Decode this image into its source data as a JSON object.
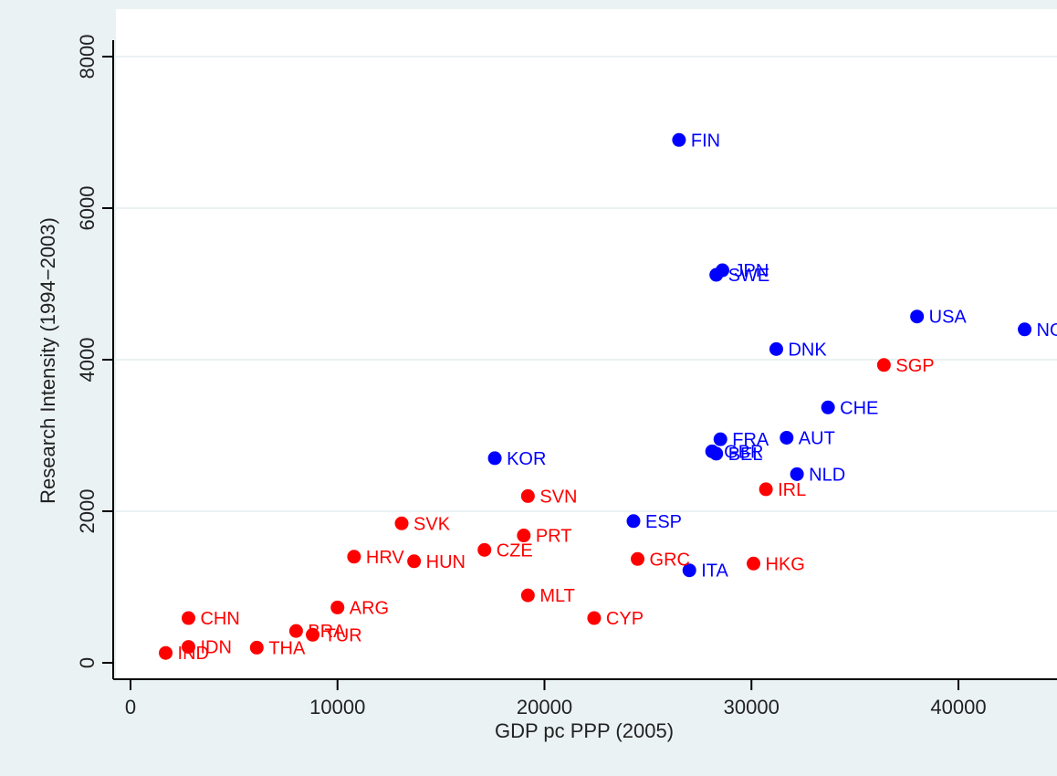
{
  "chart_data": {
    "type": "scatter",
    "xlabel": "GDP pc PPP (2005)",
    "ylabel": "Research Intensity (1994−2003)",
    "xlim": [
      -1000,
      44000
    ],
    "ylim": [
      -300,
      8400
    ],
    "x_ticks": [
      0,
      10000,
      20000,
      30000,
      40000
    ],
    "y_ticks": [
      0,
      2000,
      4000,
      6000,
      8000
    ],
    "grid": "horizontal",
    "legend": "none",
    "colors": {
      "blue": "#0000ff",
      "red": "#ff0000",
      "plot_bg": "#ffffff",
      "outer_bg": "#eaf2f3",
      "grid": "#eaf2f3"
    },
    "series": [
      {
        "color": "blue",
        "points": [
          {
            "label": "FIN",
            "x": 26500,
            "y": 6900
          },
          {
            "label": "JPN",
            "x": 28600,
            "y": 5180
          },
          {
            "label": "SWE",
            "x": 28300,
            "y": 5120
          },
          {
            "label": "USA",
            "x": 38000,
            "y": 4570
          },
          {
            "label": "NOR",
            "x": 43200,
            "y": 4400
          },
          {
            "label": "DNK",
            "x": 31200,
            "y": 4140
          },
          {
            "label": "CHE",
            "x": 33700,
            "y": 3370
          },
          {
            "label": "FRA",
            "x": 28500,
            "y": 2950
          },
          {
            "label": "AUT",
            "x": 31700,
            "y": 2970
          },
          {
            "label": "GBR",
            "x": 28100,
            "y": 2790
          },
          {
            "label": "BEL",
            "x": 28300,
            "y": 2760
          },
          {
            "label": "KOR",
            "x": 17600,
            "y": 2700
          },
          {
            "label": "NLD",
            "x": 32200,
            "y": 2490
          },
          {
            "label": "ESP",
            "x": 24300,
            "y": 1870
          },
          {
            "label": "ITA",
            "x": 27000,
            "y": 1220
          }
        ]
      },
      {
        "color": "red",
        "points": [
          {
            "label": "SGP",
            "x": 36400,
            "y": 3930
          },
          {
            "label": "IRL",
            "x": 30700,
            "y": 2290
          },
          {
            "label": "SVN",
            "x": 19200,
            "y": 2200
          },
          {
            "label": "SVK",
            "x": 13100,
            "y": 1840
          },
          {
            "label": "PRT",
            "x": 19000,
            "y": 1680
          },
          {
            "label": "CZE",
            "x": 17100,
            "y": 1490
          },
          {
            "label": "HRV",
            "x": 10800,
            "y": 1400
          },
          {
            "label": "HUN",
            "x": 13700,
            "y": 1340
          },
          {
            "label": "GRC",
            "x": 24500,
            "y": 1370
          },
          {
            "label": "HKG",
            "x": 30100,
            "y": 1310
          },
          {
            "label": "MLT",
            "x": 19200,
            "y": 890
          },
          {
            "label": "ARG",
            "x": 10000,
            "y": 730
          },
          {
            "label": "CHN",
            "x": 2800,
            "y": 590
          },
          {
            "label": "CYP",
            "x": 22400,
            "y": 590
          },
          {
            "label": "BRA",
            "x": 8000,
            "y": 420
          },
          {
            "label": "TUR",
            "x": 8800,
            "y": 370
          },
          {
            "label": "IDN",
            "x": 2800,
            "y": 210
          },
          {
            "label": "THA",
            "x": 6100,
            "y": 200
          },
          {
            "label": "IND",
            "x": 1700,
            "y": 130
          }
        ]
      }
    ]
  }
}
